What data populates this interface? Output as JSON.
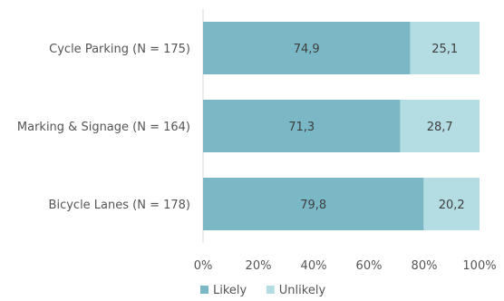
{
  "chart_data": {
    "type": "bar",
    "orientation": "horizontal",
    "stacked": true,
    "categories": [
      "Cycle Parking (N = 175)",
      "Marking & Signage (N = 164)",
      "Bicycle Lanes (N = 178)"
    ],
    "series": [
      {
        "name": "Likely",
        "values": [
          74.9,
          71.3,
          79.8
        ],
        "labels": [
          "74,9",
          "71,3",
          "79,8"
        ],
        "color": "#7ab8c6"
      },
      {
        "name": "Unlikely",
        "values": [
          25.1,
          28.7,
          20.2
        ],
        "labels": [
          "25,1",
          "28,7",
          "20,2"
        ],
        "color": "#b4dce3"
      }
    ],
    "xlim": [
      0,
      100
    ],
    "xticks": [
      "0%",
      "20%",
      "40%",
      "60%",
      "80%",
      "100%"
    ],
    "legend": "bottom",
    "grid": false
  }
}
